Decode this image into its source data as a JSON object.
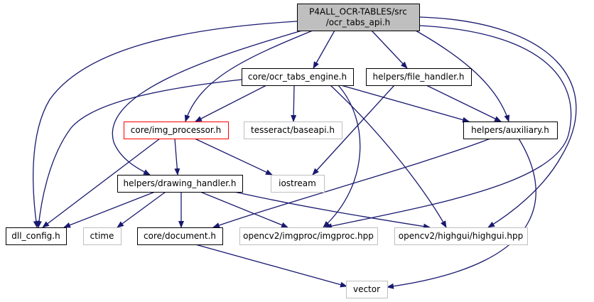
{
  "colors": {
    "edge": "#191970",
    "border_normal": "#000000",
    "border_system": "#bfbfbf",
    "border_highlight": "#ff0000",
    "root_fill": "#bfbfbf",
    "node_fill": "#ffffff",
    "text_normal": "#000000",
    "text_system": "#404040"
  },
  "nodes": {
    "root": {
      "lines": [
        "P4ALL_OCR-TABLES/src",
        "/ocr_tabs_api.h"
      ],
      "kind": "root"
    },
    "engine": {
      "lines": [
        "core/ocr_tabs_engine.h"
      ],
      "kind": "normal"
    },
    "file_handler": {
      "lines": [
        "helpers/file_handler.h"
      ],
      "kind": "normal"
    },
    "img_processor": {
      "lines": [
        "core/img_processor.h"
      ],
      "kind": "highlight"
    },
    "tesseract": {
      "lines": [
        "tesseract/baseapi.h"
      ],
      "kind": "system"
    },
    "auxiliary": {
      "lines": [
        "helpers/auxiliary.h"
      ],
      "kind": "normal"
    },
    "drawing_handler": {
      "lines": [
        "helpers/drawing_handler.h"
      ],
      "kind": "normal"
    },
    "iostream": {
      "lines": [
        "iostream"
      ],
      "kind": "system"
    },
    "dll_config": {
      "lines": [
        "dll_config.h"
      ],
      "kind": "normal"
    },
    "ctime": {
      "lines": [
        "ctime"
      ],
      "kind": "system"
    },
    "document": {
      "lines": [
        "core/document.h"
      ],
      "kind": "normal"
    },
    "imgproc": {
      "lines": [
        "opencv2/imgproc/imgproc.hpp"
      ],
      "kind": "system"
    },
    "highgui": {
      "lines": [
        "opencv2/highgui/highgui.hpp"
      ],
      "kind": "system"
    },
    "vector": {
      "lines": [
        "vector"
      ],
      "kind": "system"
    }
  },
  "edges": [
    {
      "from": "root",
      "to": "engine"
    },
    {
      "from": "root",
      "to": "file_handler"
    },
    {
      "from": "root",
      "to": "img_processor"
    },
    {
      "from": "root",
      "to": "auxiliary"
    },
    {
      "from": "root",
      "to": "drawing_handler"
    },
    {
      "from": "root",
      "to": "dll_config"
    },
    {
      "from": "root",
      "to": "imgproc"
    },
    {
      "from": "root",
      "to": "highgui"
    },
    {
      "from": "engine",
      "to": "img_processor"
    },
    {
      "from": "engine",
      "to": "tesseract"
    },
    {
      "from": "engine",
      "to": "auxiliary"
    },
    {
      "from": "engine",
      "to": "dll_config"
    },
    {
      "from": "engine",
      "to": "imgproc"
    },
    {
      "from": "engine",
      "to": "highgui"
    },
    {
      "from": "file_handler",
      "to": "auxiliary"
    },
    {
      "from": "file_handler",
      "to": "iostream"
    },
    {
      "from": "img_processor",
      "to": "drawing_handler"
    },
    {
      "from": "img_processor",
      "to": "iostream"
    },
    {
      "from": "img_processor",
      "to": "dll_config"
    },
    {
      "from": "auxiliary",
      "to": "document"
    },
    {
      "from": "auxiliary",
      "to": "vector"
    },
    {
      "from": "drawing_handler",
      "to": "dll_config"
    },
    {
      "from": "drawing_handler",
      "to": "ctime"
    },
    {
      "from": "drawing_handler",
      "to": "document"
    },
    {
      "from": "drawing_handler",
      "to": "imgproc"
    },
    {
      "from": "drawing_handler",
      "to": "highgui"
    },
    {
      "from": "document",
      "to": "vector"
    }
  ]
}
